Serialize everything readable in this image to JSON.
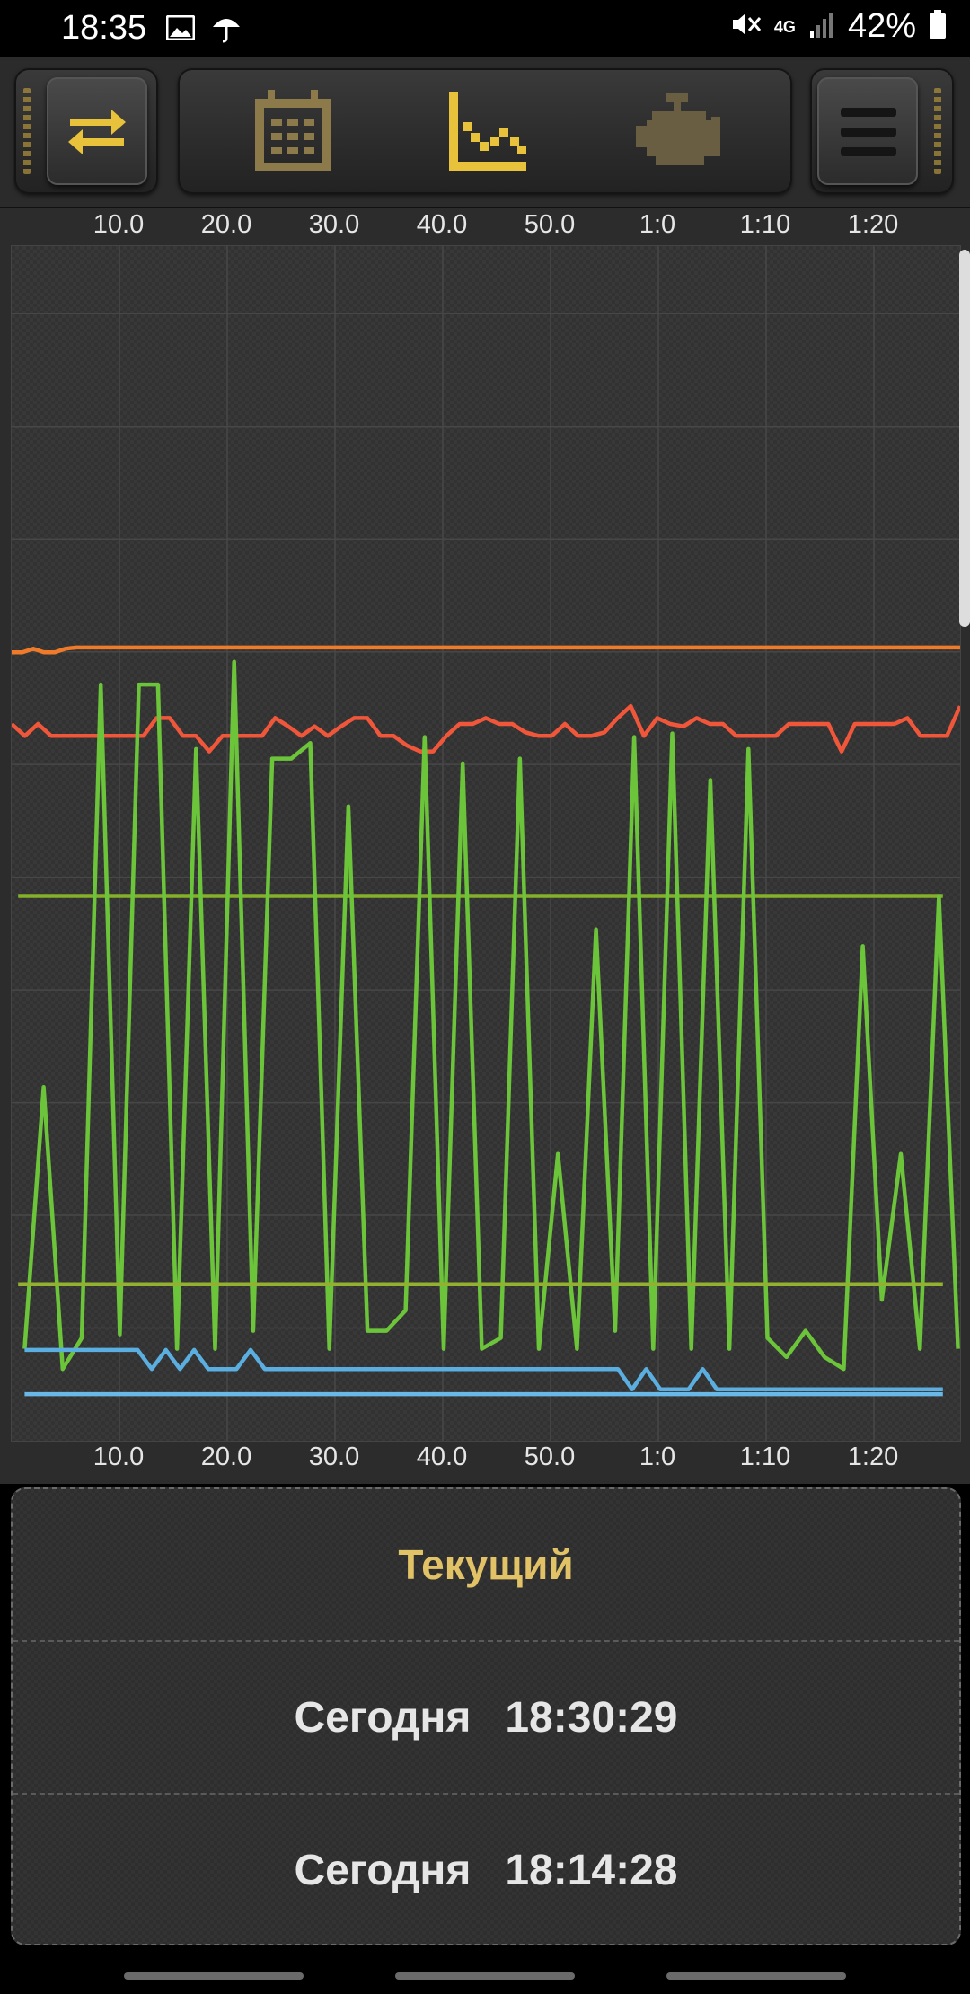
{
  "status_bar": {
    "time": "18:35",
    "network": "4G",
    "battery": "42%",
    "icons": [
      "gallery-icon",
      "umbrella-icon",
      "mute-icon",
      "signal-icon",
      "battery-icon"
    ]
  },
  "toolbar": {
    "left_icon": "swap-arrows-icon",
    "tabs": [
      "calendar-icon",
      "graph-icon",
      "engine-icon"
    ],
    "active_tab": "graph-icon",
    "menu_icon": "menu-icon",
    "accent_color": "#e8c23a"
  },
  "chart_data": {
    "type": "line",
    "x_ticks_top": [
      "10.0",
      "20.0",
      "30.0",
      "40.0",
      "50.0",
      "1:0",
      "1:10",
      "1:20"
    ],
    "x_ticks_bottom": [
      "10.0",
      "20.0",
      "30.0",
      "40.0",
      "50.0",
      "1:0",
      "1:10",
      "1:20"
    ],
    "x_range": [
      0,
      88
    ],
    "y_range": [
      0,
      100
    ],
    "grid": true,
    "series": [
      {
        "color": "#ee7a2a",
        "values": [
          66.0,
          66.0,
          66.3,
          66.0,
          66.0,
          66.3,
          66.4,
          66.4,
          66.4,
          66.4,
          66.4,
          66.4,
          66.4,
          66.4,
          66.4,
          66.4,
          66.4,
          66.4,
          66.4,
          66.4,
          66.4,
          66.4,
          66.4,
          66.4,
          66.4,
          66.4,
          66.4,
          66.4,
          66.4,
          66.4,
          66.4,
          66.4,
          66.4,
          66.4,
          66.4,
          66.4,
          66.4,
          66.4,
          66.4,
          66.4,
          66.4,
          66.4,
          66.4,
          66.4,
          66.4,
          66.4,
          66.4,
          66.4,
          66.4,
          66.4,
          66.4,
          66.4,
          66.4,
          66.4,
          66.4,
          66.4,
          66.4,
          66.4,
          66.4,
          66.4,
          66.4,
          66.4,
          66.4,
          66.4,
          66.4,
          66.4,
          66.4,
          66.4,
          66.4,
          66.4,
          66.4,
          66.4,
          66.4,
          66.4,
          66.4,
          66.4,
          66.4,
          66.4,
          66.4,
          66.4,
          66.4,
          66.4,
          66.4,
          66.4,
          66.4,
          66.4,
          66.4,
          66.4,
          66.4
        ]
      },
      {
        "color": "#f0563a",
        "values": [
          60.0,
          59.0,
          60.0,
          59.0,
          59.0,
          59.0,
          59.0,
          59.0,
          59.0,
          59.0,
          59.0,
          60.5,
          60.5,
          59.0,
          59.0,
          57.7,
          59.0,
          59.0,
          59.0,
          59.0,
          60.5,
          59.8,
          59.0,
          59.8,
          59.0,
          59.8,
          60.5,
          60.5,
          59.0,
          59.0,
          58.2,
          57.7,
          57.7,
          59.0,
          60.0,
          60.0,
          60.5,
          60.0,
          60.0,
          59.3,
          59.0,
          59.0,
          60.0,
          59.0,
          59.0,
          59.3,
          60.5,
          61.5,
          59.0,
          60.5,
          60.0,
          59.8,
          60.5,
          60.0,
          60.0,
          59.0,
          59.0,
          59.0,
          59.0,
          60.0,
          60.0,
          60.0,
          60.0,
          57.7,
          60.0,
          60.0,
          60.0,
          60.0,
          60.5,
          59.0,
          59.0,
          59.0,
          61.5
        ]
      },
      {
        "color": "#84b02a",
        "values": [
          45.6,
          45.6
        ]
      },
      {
        "color": "#6cc43a",
        "values": [
          7.7,
          29.6,
          6.0,
          8.6,
          63.3,
          8.9,
          63.3,
          63.3,
          7.7,
          57.9,
          7.7,
          65.2,
          9.2,
          57.1,
          57.1,
          58.4,
          7.7,
          53.1,
          9.2,
          9.2,
          10.9,
          58.9,
          7.7,
          56.7,
          7.7,
          8.6,
          57.1,
          7.7,
          24.0,
          7.7,
          42.8,
          9.2,
          58.9,
          7.7,
          59.2,
          7.7,
          55.3,
          7.7,
          57.9,
          8.6,
          7.0,
          9.2,
          7.0,
          6.0,
          41.4,
          11.8,
          24.0,
          7.7,
          45.6,
          7.7
        ]
      },
      {
        "color": "#94b030",
        "values": [
          13.1,
          13.1
        ]
      },
      {
        "color": "#5aaee0",
        "values": [
          7.6,
          7.6,
          7.6,
          7.6,
          7.6,
          7.6,
          7.6,
          7.6,
          7.6,
          6.0,
          7.6,
          6.0,
          7.6,
          6.0,
          6.0,
          6.0,
          7.6,
          6.0,
          6.0,
          6.0,
          6.0,
          6.0,
          6.0,
          6.0,
          6.0,
          6.0,
          6.0,
          6.0,
          6.0,
          6.0,
          6.0,
          6.0,
          6.0,
          6.0,
          6.0,
          6.0,
          6.0,
          6.0,
          6.0,
          6.0,
          6.0,
          6.0,
          6.0,
          4.3,
          6.0,
          4.3,
          4.3,
          4.3,
          6.0,
          4.3,
          4.3,
          4.3,
          4.3,
          4.3,
          4.3,
          4.3,
          4.3,
          4.3,
          4.3,
          4.3,
          4.3,
          4.3,
          4.3,
          4.3,
          4.3,
          4.3
        ]
      },
      {
        "color": "#6ab8e6",
        "values": [
          3.9,
          3.9
        ]
      }
    ]
  },
  "list": {
    "title": "Текущий",
    "rows": [
      {
        "day": "Сегодня",
        "time": "18:30:29"
      },
      {
        "day": "Сегодня",
        "time": "18:14:28"
      }
    ]
  }
}
